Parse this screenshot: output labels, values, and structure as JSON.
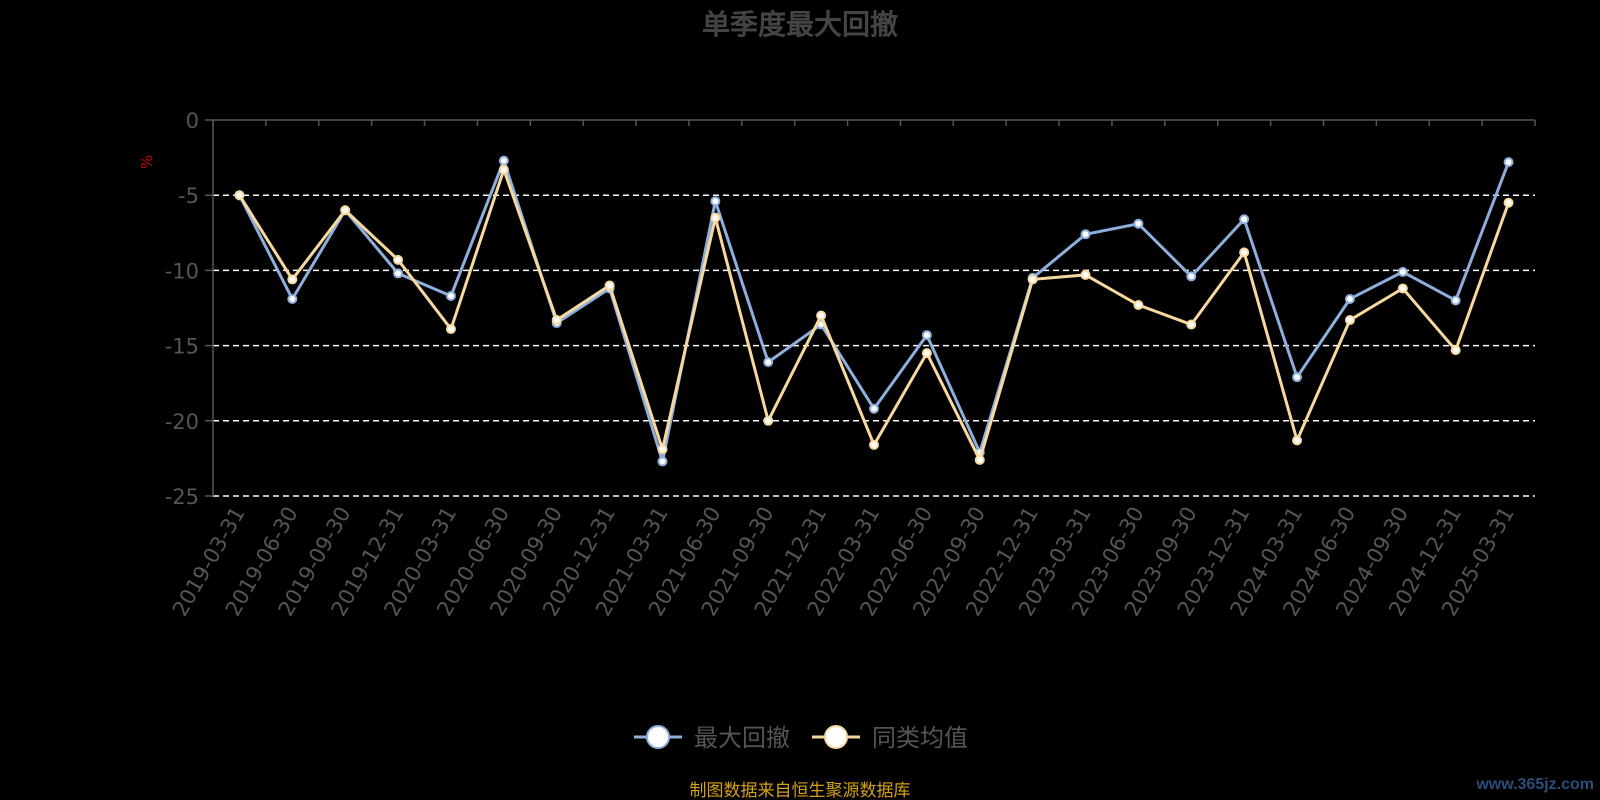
{
  "colors": {
    "background": "#000000",
    "axis": "#555555",
    "tick_text": "#555555",
    "title": "#444444",
    "grid": "#ffffff",
    "unit": "#cc0000",
    "source": "#d4a017",
    "watermark": "#2a4d7a"
  },
  "chart_data": {
    "type": "line",
    "title": "单季度最大回撤",
    "ylabel": "%",
    "ylim": [
      -25,
      0
    ],
    "yticks": [
      0,
      -5,
      -10,
      -15,
      -20,
      -25
    ],
    "grid": true,
    "grid_style": "dashed",
    "legend_position": "bottom-center",
    "categories": [
      "2019-03-31",
      "2019-06-30",
      "2019-09-30",
      "2019-12-31",
      "2020-03-31",
      "2020-06-30",
      "2020-09-30",
      "2020-12-31",
      "2021-03-31",
      "2021-06-30",
      "2021-09-30",
      "2021-12-31",
      "2022-03-31",
      "2022-06-30",
      "2022-09-30",
      "2022-12-31",
      "2023-03-31",
      "2023-06-30",
      "2023-09-30",
      "2023-12-31",
      "2024-03-31",
      "2024-06-30",
      "2024-09-30",
      "2024-12-31",
      "2025-03-31"
    ],
    "series": [
      {
        "name": "最大回撤",
        "color": "#8eaedc",
        "values": [
          -5.0,
          -11.9,
          -6.0,
          -10.2,
          -11.7,
          -2.7,
          -13.5,
          -11.2,
          -22.7,
          -5.4,
          -16.1,
          -13.6,
          -19.2,
          -14.3,
          -22.1,
          -10.5,
          -7.6,
          -6.9,
          -10.4,
          -6.6,
          -17.1,
          -11.9,
          -10.1,
          -12.0,
          -2.8
        ]
      },
      {
        "name": "同类均值",
        "color": "#f7d9a0",
        "values": [
          -5.0,
          -10.6,
          -6.0,
          -9.3,
          -13.9,
          -3.3,
          -13.3,
          -11.0,
          -21.9,
          -6.5,
          -20.0,
          -13.0,
          -21.6,
          -15.5,
          -22.6,
          -10.6,
          -10.3,
          -12.3,
          -13.6,
          -8.8,
          -21.3,
          -13.3,
          -11.2,
          -15.3,
          -5.5
        ]
      }
    ]
  },
  "footer": {
    "source": "制图数据来自恒生聚源数据库",
    "watermark": "www.365jz.com"
  }
}
